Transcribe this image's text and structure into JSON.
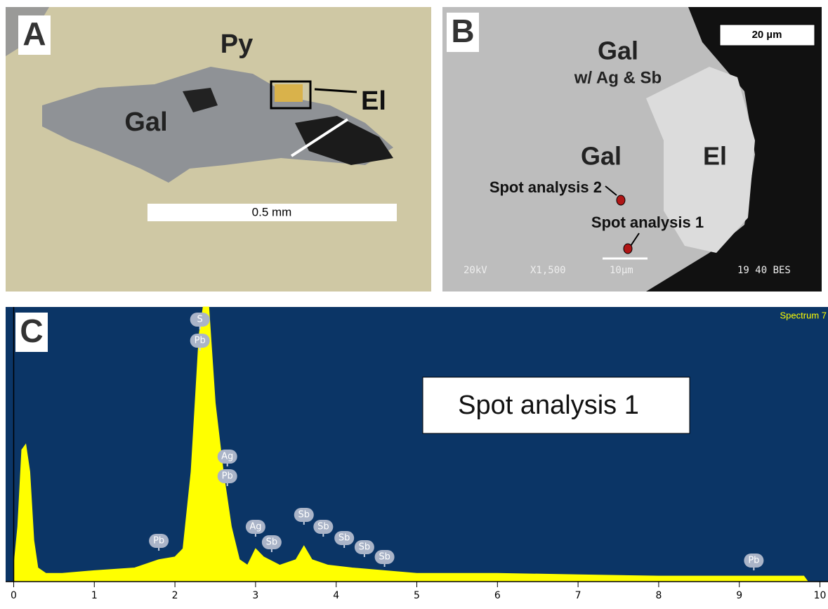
{
  "panel_a": {
    "label": "A",
    "py": "Py",
    "gal": "Gal",
    "el": "El",
    "scale": "0.5 mm"
  },
  "panel_b": {
    "label": "B",
    "gal_top": "Gal",
    "gal_top_note": "w/ Ag & Sb",
    "gal": "Gal",
    "el": "El",
    "spot2": "Spot analysis 2",
    "spot1": "Spot analysis 1",
    "scale": "20 µm",
    "footer": [
      "20kV",
      "X1,500",
      "10µm",
      "19 40 BES"
    ]
  },
  "chart_data": {
    "type": "area",
    "label": "C",
    "spectrum_name": "Spectrum 7",
    "annotation": "Spot analysis 1",
    "x": [
      0,
      0.05,
      0.1,
      0.15,
      0.2,
      0.25,
      0.3,
      0.4,
      0.6,
      1.0,
      1.5,
      1.8,
      2.0,
      2.1,
      2.2,
      2.3,
      2.35,
      2.42,
      2.5,
      2.6,
      2.7,
      2.8,
      2.9,
      3.0,
      3.1,
      3.3,
      3.5,
      3.6,
      3.7,
      3.9,
      4.2,
      4.6,
      5,
      6,
      7,
      8,
      9,
      9.8,
      9.85
    ],
    "values": [
      5,
      20,
      48,
      50,
      40,
      15,
      5,
      3,
      3,
      4,
      5,
      8,
      9,
      12,
      40,
      90,
      100,
      100,
      65,
      40,
      20,
      8,
      6,
      12,
      9,
      6,
      8,
      13,
      8,
      6,
      5,
      4,
      3,
      3,
      2.5,
      2,
      2,
      2,
      0
    ],
    "color": "#ffff00",
    "background": "#0b3566",
    "xlim": [
      -0.1,
      10.1
    ],
    "xticks": [
      0,
      1,
      2,
      3,
      4,
      5,
      6,
      7,
      8,
      9,
      10
    ],
    "ylim": [
      0,
      100
    ],
    "peak_labels": [
      {
        "label": "Pb",
        "x": 1.8
      },
      {
        "label": "S",
        "x": 2.31
      },
      {
        "label": "Pb",
        "x": 2.31
      },
      {
        "label": "Ag",
        "x": 2.65
      },
      {
        "label": "Pb",
        "x": 2.65
      },
      {
        "label": "Ag",
        "x": 3.0
      },
      {
        "label": "Sb",
        "x": 3.2
      },
      {
        "label": "Sb",
        "x": 3.6
      },
      {
        "label": "Sb",
        "x": 3.84
      },
      {
        "label": "Sb",
        "x": 4.1
      },
      {
        "label": "Sb",
        "x": 4.35
      },
      {
        "label": "Sb",
        "x": 4.6
      },
      {
        "label": "Pb",
        "x": 9.18
      }
    ]
  }
}
